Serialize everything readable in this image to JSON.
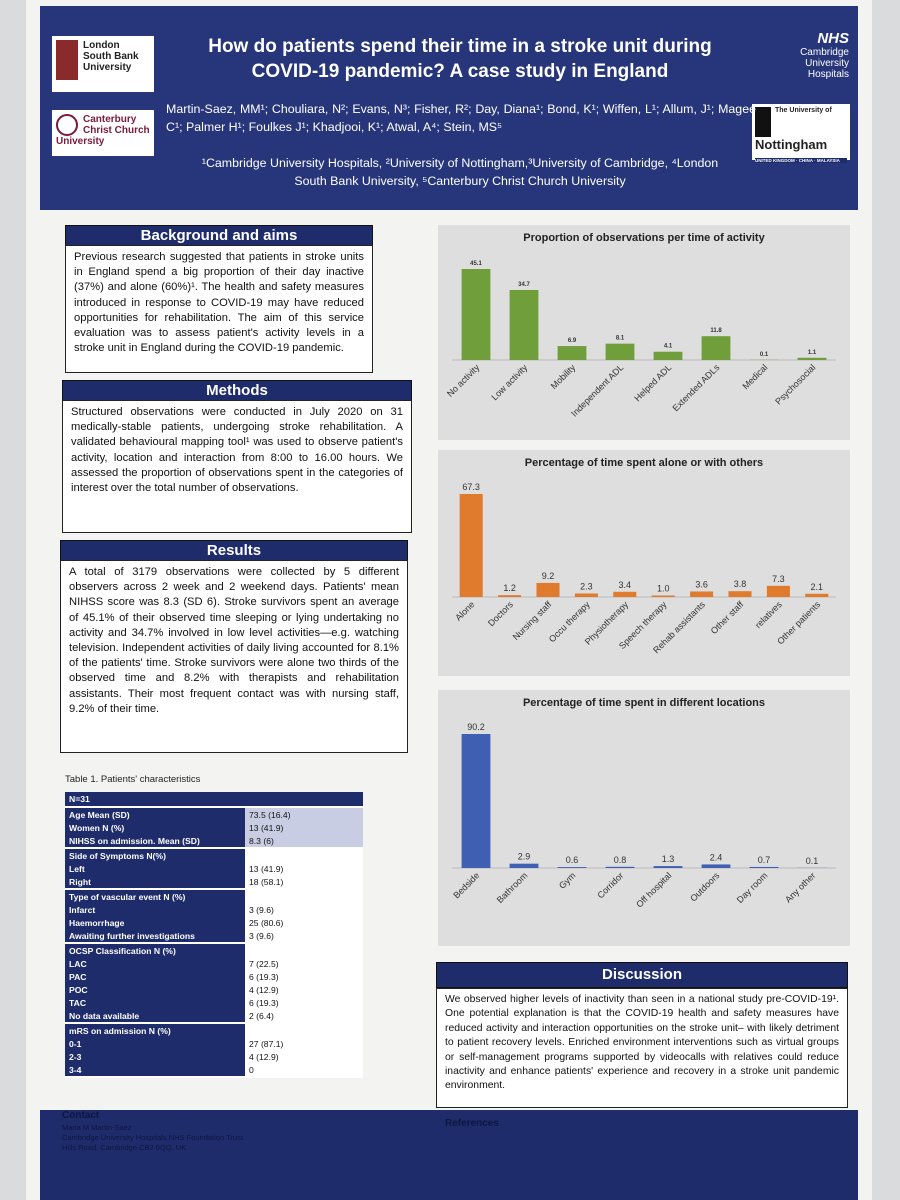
{
  "header": {
    "title": "How do patients spend their time in a stroke unit during COVID-19 pandemic? A case study in England",
    "authors": "Martin-Saez, MM¹; Chouliara, N²; Evans, N³; Fisher, R²; Day, Diana¹; Bond, K¹; Wiffen, L¹; Allum, J¹; Magee C¹; Palmer H¹; Foulkes J¹; Khadjooi, K¹; Atwal, A⁴; Stein, MS⁵",
    "affiliations": "¹Cambridge University Hospitals, ²University of Nottingham,³University of Cambridge, ⁴London South Bank University, ⁵Canterbury Christ Church University",
    "logos": {
      "lsbu": "London South Bank University",
      "ccc": "Canterbury Christ Church University",
      "nhs": "NHS",
      "cuh": "Cambridge University Hospitals",
      "uon_pre": "The University of",
      "uon": "Nottingham",
      "uon_sub": "UNITED KINGDOM · CHINA · MALAYSIA"
    }
  },
  "background": {
    "heading": "Background and aims",
    "text": "Previous research suggested that patients in stroke units in England spend a big proportion of their day inactive (37%) and alone (60%)¹. The health and safety measures introduced in response to COVID-19 may have reduced opportunities for rehabilitation. The aim of this service evaluation was to assess patient's activity levels in a stroke unit in England during the COVID-19 pandemic."
  },
  "methods": {
    "heading": "Methods",
    "text": "Structured observations were conducted in July 2020 on 31 medically-stable patients, undergoing stroke rehabilitation. A validated behavioural mapping tool¹ was used to observe patient's activity, location and interaction from 8:00 to 16.00 hours. We assessed the proportion of observations spent in the categories of interest over the total number of observations."
  },
  "results": {
    "heading": "Results",
    "text": "A total of 3179 observations were collected by 5 different observers across 2 week and 2 weekend days. Patients' mean NIHSS score was 8.3 (SD 6). Stroke survivors spent an average of 45.1% of their observed time sleeping or lying undertaking no activity and 34.7% involved in low level activities—e.g. watching television. Independent activities of daily living accounted for 8.1% of the patients' time. Stroke survivors were alone two thirds of the observed time and 8.2% with therapists and rehabilitation assistants. Their most frequent contact was with nursing staff, 9.2% of their time."
  },
  "table": {
    "caption": "Table 1. Patients' characteristics",
    "header": "N=31",
    "sections": [
      [
        [
          "Age Mean (SD)",
          "73.5 (16.4)"
        ],
        [
          "Women N (%)",
          "13 (41.9)"
        ],
        [
          "NIHSS on admission. Mean (SD)",
          "8.3 (6)"
        ]
      ],
      [
        [
          "Side of Symptoms N(%)"
        ],
        [
          "Left",
          "13 (41.9)"
        ],
        [
          "Right",
          "18 (58.1)"
        ]
      ],
      [
        [
          "Type of vascular event N (%)"
        ],
        [
          "Infarct",
          "3 (9.6)"
        ],
        [
          "Haemorrhage",
          "25 (80.6)"
        ],
        [
          "Awaiting further investigations",
          "3 (9.6)"
        ]
      ],
      [
        [
          "OCSP Classification  N (%)"
        ],
        [
          "LAC",
          "7 (22.5)"
        ],
        [
          "PAC",
          "6 (19.3)"
        ],
        [
          "POC",
          "4 (12.9)"
        ],
        [
          "TAC",
          "6 (19.3)"
        ],
        [
          "No data available",
          "2 (6.4)"
        ]
      ],
      [
        [
          "mRS on admission N (%)"
        ],
        [
          "0-1",
          "27 (87.1)"
        ],
        [
          "2-3",
          "4 (12.9)"
        ],
        [
          "3-4",
          "0"
        ]
      ]
    ]
  },
  "chart_data": [
    {
      "type": "bar",
      "title": "Proportion of observations per time of activity",
      "color": "#6f9e3a",
      "categories": [
        "No activity",
        "Low activity",
        "Mobility",
        "Independent ADL",
        "Helped ADL",
        "Extended ADLs",
        "Medical",
        "Psychosocial"
      ],
      "values": [
        45.1,
        34.7,
        6.9,
        8.1,
        4.1,
        11.8,
        0.1,
        1.1
      ]
    },
    {
      "type": "bar",
      "title": "Percentage of time spent alone or with others",
      "color": "#e07b2e",
      "categories": [
        "Alone",
        "Doctors",
        "Nursing staff",
        "Occu therapy",
        "Physiotherapy",
        "Speech therapy",
        "Rehab assistants",
        "Other staff",
        "relatives",
        "Other patients"
      ],
      "values": [
        67.3,
        1.2,
        9.2,
        2.3,
        3.4,
        1.0,
        3.6,
        3.8,
        7.3,
        2.1
      ],
      "value_labels": [
        "67.3",
        "1.2",
        "9.2",
        "2.3",
        "3.4",
        "1.0",
        "3.6",
        "3.8",
        "7.3",
        "2.1"
      ]
    },
    {
      "type": "bar",
      "title": "Percentage of time spent in different locations",
      "color": "#3f5fb3",
      "categories": [
        "Bedside",
        "Bathroom",
        "Gym",
        "Corridor",
        "Off hospital",
        "Outdoors",
        "Day room",
        "Any other"
      ],
      "values": [
        90.2,
        2.9,
        0.6,
        0.8,
        1.3,
        2.4,
        0.7,
        0.1
      ]
    }
  ],
  "discussion": {
    "heading": "Discussion",
    "text": "We observed higher levels of inactivity than seen in a national study pre-COVID-19¹. One potential explanation is that the COVID-19 health and safety measures have reduced activity and interaction opportunities on the stroke unit– with likely detriment to patient recovery levels. Enriched environment interventions such as virtual groups or self-management programs supported by videocalls with relatives could reduce inactivity and enhance patients' experience and recovery in a stroke unit pandemic environment."
  },
  "footer": {
    "contact_heading": "Contact",
    "contact_lines": [
      "Maria M Martin-Saez",
      "Cambridge University Hospitals NHS Foundation Trust",
      "Hills Road, Cambridge CB2 0QQ, UK"
    ],
    "references_heading": "References"
  }
}
